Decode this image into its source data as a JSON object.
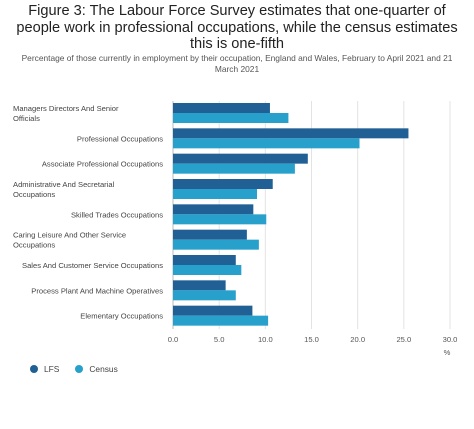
{
  "title": "Figure 3: The Labour Force Survey estimates that one-quarter of people work in professional occupations, while the census estimates this is one-fifth",
  "subtitle": "Percentage of those currently in employment by their occupation, England and Wales, February to April 2021 and 21 March 2021",
  "colors": {
    "LFS": "#206095",
    "Census": "#27a0cc"
  },
  "chart_data": {
    "type": "bar",
    "orientation": "horizontal",
    "categories": [
      "Managers Directors And Senior Officials",
      "Professional Occupations",
      "Associate Professional Occupations",
      "Administrative And Secretarial Occupations",
      "Skilled Trades Occupations",
      "Caring Leisure And Other Service Occupations",
      "Sales And Customer Service Occupations",
      "Process Plant And Machine Operatives",
      "Elementary Occupations"
    ],
    "series": [
      {
        "name": "LFS",
        "values": [
          10.5,
          25.5,
          14.6,
          10.8,
          8.7,
          8.0,
          6.8,
          5.7,
          8.6
        ]
      },
      {
        "name": "Census",
        "values": [
          12.5,
          20.2,
          13.2,
          9.1,
          10.1,
          9.3,
          7.4,
          6.8,
          10.3
        ]
      }
    ],
    "x_ticks": [
      "0.0",
      "5.0",
      "10.0",
      "15.0",
      "20.0",
      "25.0",
      "30.0"
    ],
    "xlim": [
      0,
      30
    ],
    "xlabel": "%",
    "grid": true,
    "legend_position": "bottom-left"
  }
}
